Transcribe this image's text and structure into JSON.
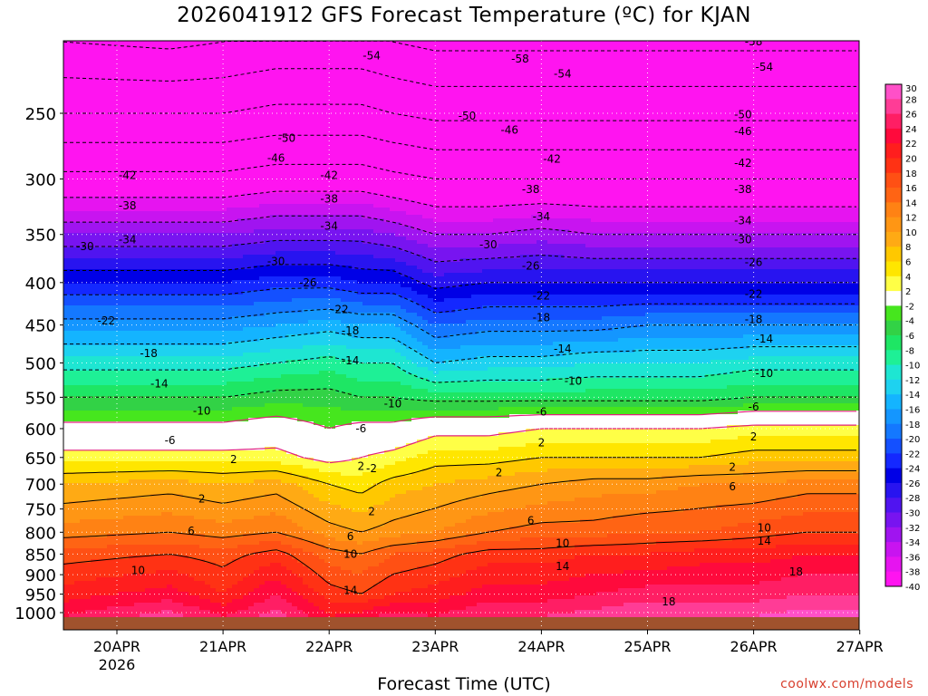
{
  "title": "2026041912 GFS Forecast Temperature (ºC) for KJAN",
  "credit": "coolwx.com/models",
  "chart_data": {
    "type": "heatmap",
    "title": "2026041912 GFS Forecast Temperature (ºC) for KJAN",
    "xlabel": "Forecast Time (UTC)",
    "ylabel": "",
    "x_ticks": [
      "20APR",
      "21APR",
      "22APR",
      "23APR",
      "24APR",
      "25APR",
      "26APR",
      "27APR"
    ],
    "x_tick_sublabel": "2026",
    "x_range_days": [
      -0.5,
      7.0
    ],
    "y_ticks": [
      250,
      300,
      350,
      400,
      450,
      500,
      550,
      600,
      650,
      700,
      750,
      800,
      850,
      900,
      950,
      1000
    ],
    "y_range_hpa": [
      200,
      1020
    ],
    "y_scale": "log (pressure)",
    "colorbar_labels": [
      30,
      28,
      26,
      24,
      22,
      20,
      18,
      16,
      14,
      12,
      10,
      8,
      6,
      4,
      2,
      -2,
      -4,
      -6,
      -8,
      -10,
      -12,
      -14,
      -16,
      -18,
      -20,
      -22,
      -24,
      -26,
      -28,
      -30,
      -32,
      -34,
      -36,
      -38,
      -40
    ],
    "colorbar_colors": [
      "#ff50c8",
      "#ff3c96",
      "#ff1e64",
      "#ff0a3c",
      "#ff1e1e",
      "#ff3214",
      "#ff5014",
      "#ff6414",
      "#ff8214",
      "#ff9614",
      "#ffaa14",
      "#ffc800",
      "#ffe600",
      "#ffff46",
      "#ffffff",
      "#46e61e",
      "#32d246",
      "#1ee664",
      "#1ef096",
      "#1ee6d2",
      "#1ed2f0",
      "#14b4ff",
      "#1496ff",
      "#1478ff",
      "#1450ff",
      "#1428ff",
      "#0000e6",
      "#2814f0",
      "#5014f0",
      "#7814f0",
      "#a014f0",
      "#c814f0",
      "#e614f0",
      "#ff14f0"
    ],
    "contour_levels": [
      -58,
      -54,
      -50,
      -46,
      -42,
      -38,
      -34,
      -30,
      -26,
      -22,
      -18,
      -14,
      -10,
      -6,
      -2,
      2,
      6,
      10,
      14,
      18
    ],
    "profiles": [
      {
        "day": -0.5,
        "temps": [
          -59,
          -50,
          -41,
          -32,
          -24,
          -17,
          -11,
          -6,
          -1,
          3,
          8,
          13,
          17,
          21,
          24
        ]
      },
      {
        "day": 0.5,
        "temps": [
          -60,
          -50,
          -41,
          -32,
          -24,
          -17,
          -11,
          -6,
          -1,
          3,
          9,
          14,
          18,
          23,
          27
        ]
      },
      {
        "day": 1.0,
        "temps": [
          -59,
          -50,
          -41,
          -32,
          -24,
          -17,
          -11,
          -6,
          -1,
          3,
          8,
          13,
          17,
          20,
          24
        ]
      },
      {
        "day": 1.5,
        "temps": [
          -58,
          -49,
          -40,
          -31,
          -23,
          -16,
          -10,
          -5,
          0,
          3,
          9,
          14,
          19,
          24,
          27
        ]
      },
      {
        "day": 2.0,
        "temps": [
          -58,
          -49,
          -40,
          -31,
          -23,
          -15,
          -9,
          -5,
          -2,
          1,
          6,
          11,
          15,
          19,
          22
        ]
      },
      {
        "day": 2.3,
        "temps": [
          -58,
          -49,
          -40,
          -31,
          -24,
          -16,
          -10,
          -6,
          -1,
          2,
          5,
          10,
          14,
          18,
          23
        ]
      },
      {
        "day": 2.6,
        "temps": [
          -59,
          -50,
          -41,
          -32,
          -24,
          -16,
          -10,
          -6,
          -1,
          3,
          7,
          11,
          16,
          20,
          25
        ]
      },
      {
        "day": 3.0,
        "temps": [
          -60,
          -51,
          -42,
          -34,
          -27,
          -20,
          -14,
          -7,
          1,
          5,
          8,
          12,
          17,
          21,
          24
        ]
      },
      {
        "day": 3.5,
        "temps": [
          -60,
          -51,
          -42,
          -34,
          -26,
          -19,
          -13,
          -7,
          1,
          5,
          9,
          14,
          19,
          23,
          26
        ]
      },
      {
        "day": 4.0,
        "temps": [
          -60,
          -51,
          -42,
          -33,
          -26,
          -19,
          -13,
          -7,
          2,
          6,
          10,
          15,
          19,
          23,
          26
        ]
      },
      {
        "day": 4.5,
        "temps": [
          -60,
          -51,
          -42,
          -34,
          -26,
          -19,
          -12,
          -7,
          2,
          6,
          11,
          15,
          20,
          24,
          27
        ]
      },
      {
        "day": 5.0,
        "temps": [
          -60,
          -51,
          -42,
          -34,
          -26,
          -18,
          -12,
          -7,
          2,
          6,
          11,
          16,
          20,
          25,
          28
        ]
      },
      {
        "day": 5.5,
        "temps": [
          -60,
          -51,
          -42,
          -34,
          -26,
          -18,
          -12,
          -7,
          2,
          6,
          12,
          16,
          21,
          25,
          28
        ]
      },
      {
        "day": 6.0,
        "temps": [
          -60,
          -51,
          -42,
          -34,
          -26,
          -18,
          -11,
          -6,
          3,
          7,
          12,
          17,
          21,
          25,
          28
        ]
      },
      {
        "day": 6.5,
        "temps": [
          -60,
          -51,
          -42,
          -34,
          -26,
          -18,
          -11,
          -6,
          3,
          7,
          13,
          18,
          22,
          26,
          29
        ]
      },
      {
        "day": 7.0,
        "temps": [
          -60,
          -51,
          -42,
          -34,
          -26,
          -18,
          -11,
          -6,
          3,
          7,
          13,
          18,
          22,
          26,
          29
        ]
      }
    ],
    "profile_levels_hpa": [
      200,
      250,
      300,
      350,
      400,
      450,
      500,
      550,
      600,
      650,
      700,
      800,
      850,
      950,
      1010
    ],
    "contour_labels": [
      {
        "text": "-58",
        "day": 3.8,
        "hpa": 215
      },
      {
        "text": "-54",
        "day": 2.4,
        "hpa": 213
      },
      {
        "text": "-54",
        "day": 4.2,
        "hpa": 224
      },
      {
        "text": "-58",
        "day": 6.0,
        "hpa": 205
      },
      {
        "text": "-54",
        "day": 6.1,
        "hpa": 220
      },
      {
        "text": "-50",
        "day": 1.6,
        "hpa": 268
      },
      {
        "text": "-50",
        "day": 3.3,
        "hpa": 252
      },
      {
        "text": "-50",
        "day": 5.9,
        "hpa": 251
      },
      {
        "text": "-46",
        "day": 1.5,
        "hpa": 283
      },
      {
        "text": "-46",
        "day": 3.7,
        "hpa": 262
      },
      {
        "text": "-46",
        "day": 5.9,
        "hpa": 263
      },
      {
        "text": "-42",
        "day": 0.1,
        "hpa": 297
      },
      {
        "text": "-42",
        "day": 2.0,
        "hpa": 297
      },
      {
        "text": "-42",
        "day": 4.1,
        "hpa": 284
      },
      {
        "text": "-42",
        "day": 5.9,
        "hpa": 287
      },
      {
        "text": "-38",
        "day": 0.1,
        "hpa": 323
      },
      {
        "text": "-38",
        "day": 2.0,
        "hpa": 317
      },
      {
        "text": "-38",
        "day": 3.9,
        "hpa": 309
      },
      {
        "text": "-38",
        "day": 5.9,
        "hpa": 309
      },
      {
        "text": "-34",
        "day": 0.1,
        "hpa": 355
      },
      {
        "text": "-34",
        "day": 2.0,
        "hpa": 342
      },
      {
        "text": "-34",
        "day": 4.0,
        "hpa": 333
      },
      {
        "text": "-34",
        "day": 5.9,
        "hpa": 337
      },
      {
        "text": "-30",
        "day": -0.3,
        "hpa": 362
      },
      {
        "text": "-30",
        "day": 1.5,
        "hpa": 377
      },
      {
        "text": "-30",
        "day": 3.5,
        "hpa": 360
      },
      {
        "text": "-30",
        "day": 5.9,
        "hpa": 355
      },
      {
        "text": "-26",
        "day": 1.8,
        "hpa": 400
      },
      {
        "text": "-26",
        "day": 3.9,
        "hpa": 382
      },
      {
        "text": "-26",
        "day": 6.0,
        "hpa": 378
      },
      {
        "text": "-22",
        "day": -0.1,
        "hpa": 445
      },
      {
        "text": "-22",
        "day": 2.1,
        "hpa": 431
      },
      {
        "text": "-22",
        "day": 4.0,
        "hpa": 415
      },
      {
        "text": "-22",
        "day": 6.0,
        "hpa": 413
      },
      {
        "text": "-18",
        "day": 0.3,
        "hpa": 487
      },
      {
        "text": "-18",
        "day": 2.2,
        "hpa": 457
      },
      {
        "text": "-18",
        "day": 4.0,
        "hpa": 441
      },
      {
        "text": "-18",
        "day": 6.0,
        "hpa": 443
      },
      {
        "text": "-14",
        "day": 0.4,
        "hpa": 530
      },
      {
        "text": "-14",
        "day": 2.2,
        "hpa": 497
      },
      {
        "text": "-14",
        "day": 4.2,
        "hpa": 481
      },
      {
        "text": "-14",
        "day": 6.1,
        "hpa": 468
      },
      {
        "text": "-10",
        "day": 0.8,
        "hpa": 571
      },
      {
        "text": "-10",
        "day": 2.6,
        "hpa": 560
      },
      {
        "text": "-10",
        "day": 4.3,
        "hpa": 526
      },
      {
        "text": "-10",
        "day": 6.1,
        "hpa": 515
      },
      {
        "text": "-6",
        "day": 0.5,
        "hpa": 620
      },
      {
        "text": "-6",
        "day": 2.3,
        "hpa": 600
      },
      {
        "text": "-6",
        "day": 4.0,
        "hpa": 573
      },
      {
        "text": "-6",
        "day": 6.0,
        "hpa": 565
      },
      {
        "text": "2",
        "day": 1.1,
        "hpa": 654
      },
      {
        "text": "2",
        "day": 2.3,
        "hpa": 666
      },
      {
        "text": "2",
        "day": 4.0,
        "hpa": 624
      },
      {
        "text": "2",
        "day": 6.0,
        "hpa": 614
      },
      {
        "text": "-2",
        "day": 2.4,
        "hpa": 670
      },
      {
        "text": "2",
        "day": 0.8,
        "hpa": 729
      },
      {
        "text": "2",
        "day": 2.4,
        "hpa": 755
      },
      {
        "text": "2",
        "day": 3.6,
        "hpa": 678
      },
      {
        "text": "2",
        "day": 5.8,
        "hpa": 668
      },
      {
        "text": "6",
        "day": 0.7,
        "hpa": 797
      },
      {
        "text": "6",
        "day": 2.2,
        "hpa": 810
      },
      {
        "text": "6",
        "day": 3.9,
        "hpa": 775
      },
      {
        "text": "6",
        "day": 5.8,
        "hpa": 705
      },
      {
        "text": "10",
        "day": 0.2,
        "hpa": 890
      },
      {
        "text": "10",
        "day": 2.2,
        "hpa": 850
      },
      {
        "text": "10",
        "day": 4.2,
        "hpa": 825
      },
      {
        "text": "10",
        "day": 6.1,
        "hpa": 790
      },
      {
        "text": "14",
        "day": 2.2,
        "hpa": 940
      },
      {
        "text": "14",
        "day": 4.2,
        "hpa": 880
      },
      {
        "text": "14",
        "day": 6.1,
        "hpa": 820
      },
      {
        "text": "18",
        "day": 5.2,
        "hpa": 970
      },
      {
        "text": "18",
        "day": 6.4,
        "hpa": 893
      }
    ],
    "ground_band_color": "#a0522d",
    "grid": "dotted vertical and horizontal",
    "colorbar_position": "right"
  },
  "xlabel": "Forecast Time (UTC)"
}
